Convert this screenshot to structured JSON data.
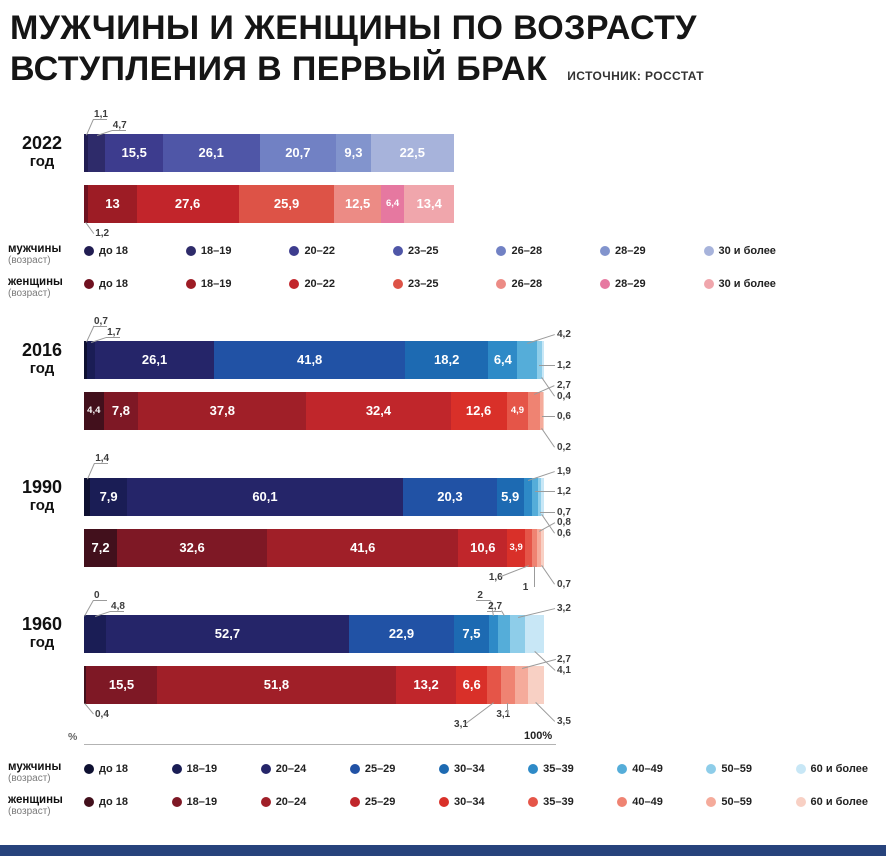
{
  "title": {
    "line1": "МУЖЧИНЫ И ЖЕНЩИНЫ ПО ВОЗРАСТУ",
    "line2": "ВСТУПЛЕНИЯ В ПЕРВЫЙ БРАК",
    "source": "ИСТОЧНИК: РОССТАТ"
  },
  "axis": {
    "left": "%",
    "right": "100%"
  },
  "legend_top": {
    "men_label": "мужчины",
    "men_sub": "(возраст)",
    "women_label": "женщины",
    "women_sub": "(возраст)",
    "categories": [
      "до 18",
      "18–19",
      "20–22",
      "23–25",
      "26–28",
      "28–29",
      "30 и более"
    ]
  },
  "legend_bottom": {
    "men_label": "мужчины",
    "men_sub": "(возраст)",
    "women_label": "женщины",
    "women_sub": "(возраст)",
    "categories": [
      "до 18",
      "18–19",
      "20–24",
      "25–29",
      "30–34",
      "35–39",
      "40–49",
      "50–59",
      "60 и более"
    ]
  },
  "palettes": {
    "men7": [
      "#211d52",
      "#2e2b6a",
      "#3d3c8e",
      "#4f56a7",
      "#7181c4",
      "#8294cd",
      "#a7b3db"
    ],
    "women7": [
      "#6f1120",
      "#9d1c25",
      "#c2252b",
      "#dd5347",
      "#ec8b85",
      "#e678a0",
      "#f0a6ac"
    ],
    "men9": [
      "#0e1031",
      "#1a1d55",
      "#252569",
      "#2152a5",
      "#1d6ab2",
      "#2e8ac7",
      "#55add9",
      "#8ecde9",
      "#c8e7f6"
    ],
    "women9": [
      "#42101c",
      "#7e1825",
      "#a01f28",
      "#c0262b",
      "#d93029",
      "#e55548",
      "#ef8372",
      "#f5ab9b",
      "#f8d0c4"
    ]
  },
  "footer": {
    "color": "#27437c"
  },
  "chart_data": [
    {
      "type": "bar",
      "stacked": true,
      "orientation": "horizontal",
      "unit": "%",
      "xlim": [
        0,
        100
      ],
      "year": "2022",
      "year_word": "год",
      "categories": [
        "до 18",
        "18–19",
        "20–22",
        "23–25",
        "26–28",
        "28–29",
        "30 и более"
      ],
      "series": [
        {
          "name": "мужчины",
          "palette": "men7",
          "values": [
            1.1,
            4.7,
            15.5,
            26.1,
            20.7,
            9.3,
            22.5
          ],
          "labels": [
            "1,1",
            "4,7",
            "15,5",
            "26,1",
            "20,7",
            "9,3",
            "22,5"
          ],
          "pos": [
            "above",
            "above",
            "in",
            "in",
            "in",
            "in",
            "in"
          ]
        },
        {
          "name": "женщины",
          "palette": "women7",
          "values": [
            1.2,
            13,
            27.6,
            25.9,
            12.5,
            6.4,
            13.4
          ],
          "labels": [
            "1,2",
            "13",
            "27,6",
            "25,9",
            "12,5",
            "6,4",
            "13,4"
          ],
          "pos": [
            "below",
            "in",
            "in",
            "in",
            "in",
            "in",
            "in"
          ]
        }
      ]
    },
    {
      "type": "bar",
      "stacked": true,
      "orientation": "horizontal",
      "unit": "%",
      "xlim": [
        0,
        100
      ],
      "year": "2016",
      "year_word": "год",
      "categories": [
        "до 18",
        "18–19",
        "20–24",
        "25–29",
        "30–34",
        "35–39",
        "40–49",
        "50–59",
        "60 и более"
      ],
      "series": [
        {
          "name": "мужчины",
          "palette": "men9",
          "values": [
            0.7,
            1.7,
            26.1,
            41.8,
            18.2,
            6.4,
            4.2,
            1.2,
            0.4
          ],
          "labels": [
            "0,7",
            "1,7",
            "26,1",
            "41,8",
            "18,2",
            "6,4",
            "4,2",
            "1,2",
            "0,4"
          ],
          "pos": [
            "above",
            "above",
            "in",
            "in",
            "in",
            "in",
            "right",
            "right",
            "right"
          ]
        },
        {
          "name": "женщины",
          "palette": "women9",
          "values": [
            4.4,
            7.8,
            37.8,
            32.4,
            12.6,
            4.9,
            2.7,
            0.6,
            0.2
          ],
          "labels": [
            "4,4",
            "7,8",
            "37,8",
            "32,4",
            "12,6",
            "4,9",
            "2,7",
            "0,6",
            "0,2"
          ],
          "pos": [
            "in",
            "in",
            "in",
            "in",
            "in",
            "in",
            "right",
            "right",
            "right"
          ]
        }
      ]
    },
    {
      "type": "bar",
      "stacked": true,
      "orientation": "horizontal",
      "unit": "%",
      "xlim": [
        0,
        100
      ],
      "year": "1990",
      "year_word": "год",
      "categories": [
        "до 18",
        "18–19",
        "20–24",
        "25–29",
        "30–34",
        "35–39",
        "40–49",
        "50–59",
        "60 и более"
      ],
      "series": [
        {
          "name": "мужчины",
          "palette": "men9",
          "values": [
            1.4,
            7.9,
            60.1,
            20.3,
            5.9,
            1.9,
            1.2,
            0.7,
            0.6
          ],
          "labels": [
            "1,4",
            "7,9",
            "60,1",
            "20,3",
            "5,9",
            "1,9",
            "1,2",
            "0,7",
            "0,6"
          ],
          "pos": [
            "above",
            "in",
            "in",
            "in",
            "in",
            "right",
            "right",
            "right",
            "right"
          ]
        },
        {
          "name": "женщины",
          "palette": "women9",
          "values": [
            7.2,
            32.6,
            41.6,
            10.6,
            3.9,
            1.6,
            1,
            0.8,
            0.7
          ],
          "labels": [
            "7,2",
            "32,6",
            "41,6",
            "10,6",
            "3,9",
            "1,6",
            "1",
            "0,8",
            "0,7"
          ],
          "pos": [
            "in",
            "in",
            "in",
            "in",
            "in",
            "below",
            "below",
            "right",
            "right"
          ]
        }
      ]
    },
    {
      "type": "bar",
      "stacked": true,
      "orientation": "horizontal",
      "unit": "%",
      "xlim": [
        0,
        100
      ],
      "year": "1960",
      "year_word": "год",
      "categories": [
        "до 18",
        "18–19",
        "20–24",
        "25–29",
        "30–34",
        "35–39",
        "40–49",
        "50–59",
        "60 и более"
      ],
      "series": [
        {
          "name": "мужчины",
          "palette": "men9",
          "values": [
            0,
            4.8,
            52.7,
            22.9,
            7.5,
            2,
            2.7,
            3.2,
            4.1
          ],
          "labels": [
            "0",
            "4,8",
            "52,7",
            "22,9",
            "7,5",
            "2",
            "2,7",
            "3,2",
            "4,1"
          ],
          "pos": [
            "above",
            "above",
            "in",
            "in",
            "in",
            "above",
            "above",
            "right",
            "right"
          ]
        },
        {
          "name": "женщины",
          "palette": "women9",
          "values": [
            0.4,
            15.5,
            51.8,
            13.2,
            6.6,
            3.1,
            3.1,
            2.7,
            3.5
          ],
          "labels": [
            "0,4",
            "15,5",
            "51,8",
            "13,2",
            "6,6",
            "3,1",
            "3,1",
            "2,7",
            "3,5"
          ],
          "pos": [
            "below",
            "in",
            "in",
            "in",
            "in",
            "below",
            "below",
            "right",
            "right"
          ]
        }
      ]
    }
  ]
}
